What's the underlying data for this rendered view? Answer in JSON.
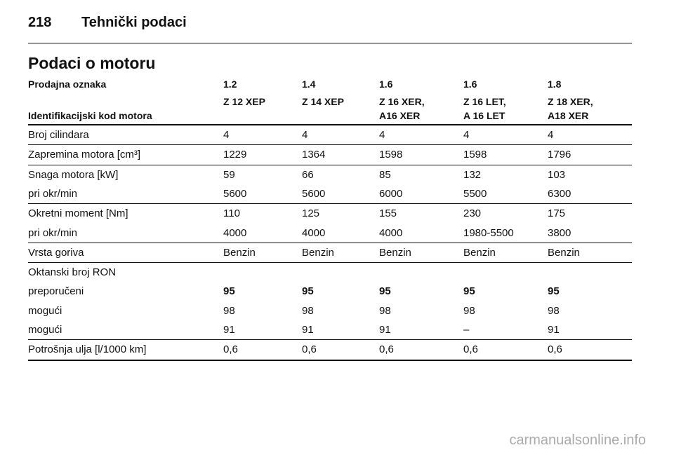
{
  "header": {
    "page_number": "218",
    "title": "Tehnički podaci"
  },
  "section_title": "Podaci o motoru",
  "table": {
    "header_rows": [
      {
        "label": "Prodajna oznaka",
        "values": [
          [
            "1.2"
          ],
          [
            "1.4"
          ],
          [
            "1.6"
          ],
          [
            "1.6"
          ],
          [
            "1.8"
          ]
        ]
      },
      {
        "label": "Identifikacijski kod motora",
        "values": [
          [
            "Z 12 XEP"
          ],
          [
            "Z 14 XEP"
          ],
          [
            "Z 16 XER,",
            "A16 XER"
          ],
          [
            "Z 16 LET,",
            "A 16 LET"
          ],
          [
            "Z 18 XER,",
            "A18 XER"
          ]
        ]
      }
    ],
    "groups": [
      [
        {
          "label": "Broj cilindara",
          "values": [
            "4",
            "4",
            "4",
            "4",
            "4"
          ]
        }
      ],
      [
        {
          "label": "Zapremina motora [cm³]",
          "values": [
            "1229",
            "1364",
            "1598",
            "1598",
            "1796"
          ]
        }
      ],
      [
        {
          "label": "Snaga motora [kW]",
          "values": [
            "59",
            "66",
            "85",
            "132",
            "103"
          ]
        },
        {
          "label": "pri okr/min",
          "values": [
            "5600",
            "5600",
            "6000",
            "5500",
            "6300"
          ]
        }
      ],
      [
        {
          "label": "Okretni moment [Nm]",
          "values": [
            "110",
            "125",
            "155",
            "230",
            "175"
          ]
        },
        {
          "label": "pri okr/min",
          "values": [
            "4000",
            "4000",
            "4000",
            "1980-5500",
            "3800"
          ]
        }
      ],
      [
        {
          "label": "Vrsta goriva",
          "values": [
            "Benzin",
            "Benzin",
            "Benzin",
            "Benzin",
            "Benzin"
          ]
        }
      ],
      [
        {
          "label": "Oktanski broj RON",
          "values": []
        },
        {
          "label": "preporučeni",
          "values": [
            "95",
            "95",
            "95",
            "95",
            "95"
          ],
          "bold": true
        },
        {
          "label": "mogući",
          "values": [
            "98",
            "98",
            "98",
            "98",
            "98"
          ]
        },
        {
          "label": "mogući",
          "values": [
            "91",
            "91",
            "91",
            "–",
            "91"
          ]
        }
      ],
      [
        {
          "label": "Potrošnja ulja [l/1000 km]",
          "values": [
            "0,6",
            "0,6",
            "0,6",
            "0,6",
            "0,6"
          ]
        }
      ]
    ]
  },
  "footer": {
    "watermark": "carmanualsonline.info"
  }
}
